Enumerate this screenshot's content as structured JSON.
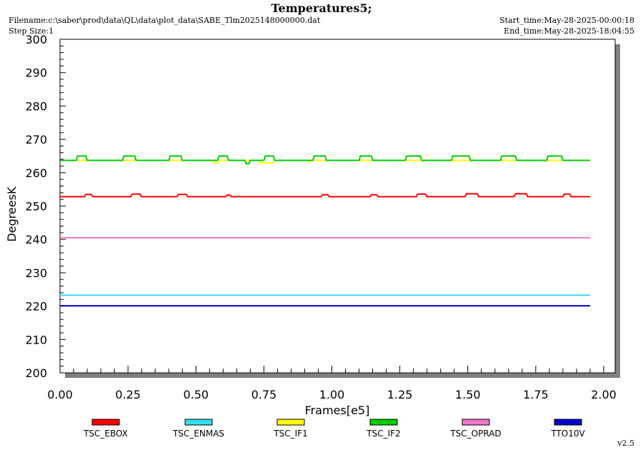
{
  "header": {
    "title": "Temperatures5;",
    "filename": "Filename:c:\\saber\\prod\\data\\QL\\data\\plot_data\\SABE_Tlm2025148000000.dat",
    "step_size": "Step Size:1",
    "start_time": "Start_time:May-28-2025-00:00:18",
    "end_time": "End_time:May-28-2025-18:04:55"
  },
  "footer": {
    "version": "v2.5"
  },
  "chart_data": {
    "type": "line",
    "title": "Temperatures5;",
    "xlabel": "Frames[e5]",
    "ylabel": "DegreesK",
    "xlim": [
      0.0,
      2.0
    ],
    "ylim": [
      200,
      300
    ],
    "x_ticks": [
      "0.00",
      "0.25",
      "0.50",
      "0.75",
      "1.00",
      "1.25",
      "1.50",
      "1.75",
      "2.00"
    ],
    "y_ticks": [
      "200",
      "210",
      "220",
      "230",
      "240",
      "250",
      "260",
      "270",
      "280",
      "290",
      "300"
    ],
    "x_end": 1.95,
    "series": [
      {
        "name": "TSC_EBOX",
        "color": "#ff0000",
        "base": 252.8,
        "bumps": [
          [
            0.09,
            0.12,
            253.5
          ],
          [
            0.26,
            0.3,
            253.6
          ],
          [
            0.43,
            0.47,
            253.5
          ],
          [
            0.61,
            0.63,
            253.3
          ],
          [
            0.96,
            0.99,
            253.4
          ],
          [
            1.14,
            1.17,
            253.4
          ],
          [
            1.31,
            1.35,
            253.6
          ],
          [
            1.49,
            1.54,
            253.7
          ],
          [
            1.67,
            1.72,
            253.7
          ],
          [
            1.85,
            1.88,
            253.6
          ]
        ]
      },
      {
        "name": "TSC_ENMAS",
        "color": "#33ddee",
        "base": 223.3,
        "bumps": []
      },
      {
        "name": "TSC_IF1",
        "color": "#ffff00",
        "base": 263.7,
        "bumps": [
          [
            0.56,
            0.59,
            263.0
          ],
          [
            0.73,
            0.79,
            263.0
          ],
          [
            0.91,
            0.92,
            263.1
          ]
        ]
      },
      {
        "name": "TSC_IF2",
        "color": "#00cc00",
        "base": 263.7,
        "bumps": [
          [
            0.06,
            0.1,
            265.0
          ],
          [
            0.23,
            0.28,
            265.0
          ],
          [
            0.4,
            0.45,
            265.0
          ],
          [
            0.58,
            0.62,
            265.0
          ],
          [
            0.75,
            0.79,
            265.0
          ],
          [
            0.93,
            0.98,
            265.0
          ],
          [
            1.1,
            1.15,
            265.0
          ],
          [
            1.27,
            1.33,
            265.0
          ],
          [
            1.44,
            1.51,
            265.0
          ],
          [
            1.62,
            1.68,
            265.0
          ],
          [
            1.79,
            1.85,
            265.0
          ],
          [
            0.68,
            0.7,
            262.7
          ]
        ]
      },
      {
        "name": "TSC_OPRAD",
        "color": "#ee77cc",
        "base": 240.5,
        "bumps": []
      },
      {
        "name": "TTO10V",
        "color": "#0000cc",
        "base": 220.1,
        "bumps": []
      }
    ]
  }
}
